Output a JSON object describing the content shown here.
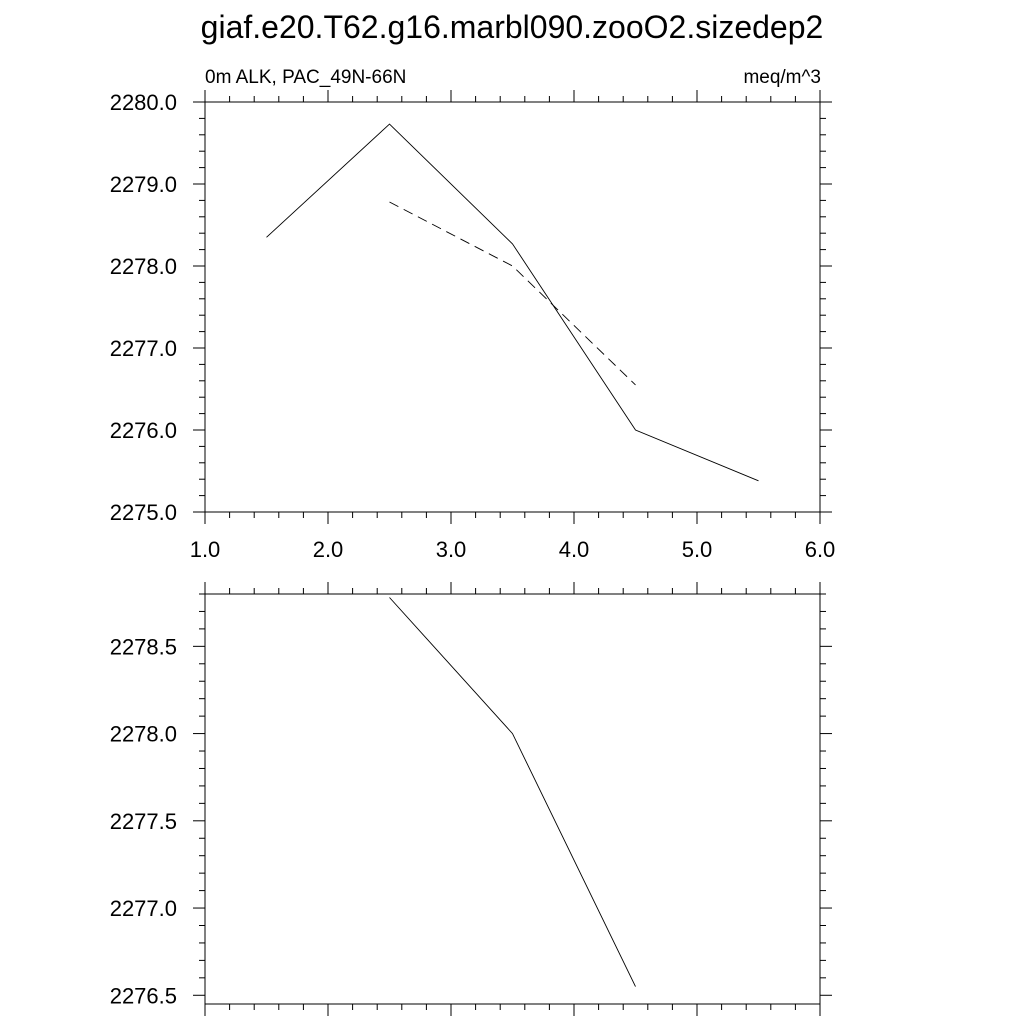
{
  "title": "giaf.e20.T62.g16.marbl090.zooO2.sizedep2",
  "chart_data": [
    {
      "type": "line",
      "subtitle_left": "0m ALK, PAC_49N-66N",
      "subtitle_right": "meq/m^3",
      "xlim": [
        1.0,
        6.0
      ],
      "ylim": [
        2275.0,
        2280.0
      ],
      "x_ticks": [
        1.0,
        2.0,
        3.0,
        4.0,
        5.0,
        6.0
      ],
      "x_tick_labels": [
        "1.0",
        "2.0",
        "3.0",
        "4.0",
        "5.0",
        "6.0"
      ],
      "y_ticks": [
        2275.0,
        2276.0,
        2277.0,
        2278.0,
        2279.0,
        2280.0
      ],
      "y_tick_labels": [
        "2275.0",
        "2276.0",
        "2277.0",
        "2278.0",
        "2279.0",
        "2280.0"
      ],
      "grid": false,
      "series": [
        {
          "style": "solid",
          "x": [
            1.5,
            2.5,
            3.5,
            4.5,
            5.5
          ],
          "y": [
            2278.35,
            2279.73,
            2278.27,
            2276.0,
            2275.38
          ]
        },
        {
          "style": "dashed",
          "x": [
            2.5,
            3.5,
            4.5
          ],
          "y": [
            2278.78,
            2278.0,
            2276.55
          ]
        }
      ]
    },
    {
      "type": "line",
      "xlim": [
        1.0,
        6.0
      ],
      "ylim": [
        2276.45,
        2278.8
      ],
      "x_ticks": [
        1.0,
        2.0,
        3.0,
        4.0,
        5.0,
        6.0
      ],
      "x_tick_labels": [],
      "y_ticks": [
        2276.5,
        2277.0,
        2277.5,
        2278.0,
        2278.5
      ],
      "y_tick_labels": [
        "2276.5",
        "2277.0",
        "2277.5",
        "2278.0",
        "2278.5"
      ],
      "grid": false,
      "series": [
        {
          "style": "solid",
          "x": [
            2.5,
            3.5,
            4.5
          ],
          "y": [
            2278.78,
            2278.0,
            2276.55
          ]
        }
      ]
    }
  ]
}
